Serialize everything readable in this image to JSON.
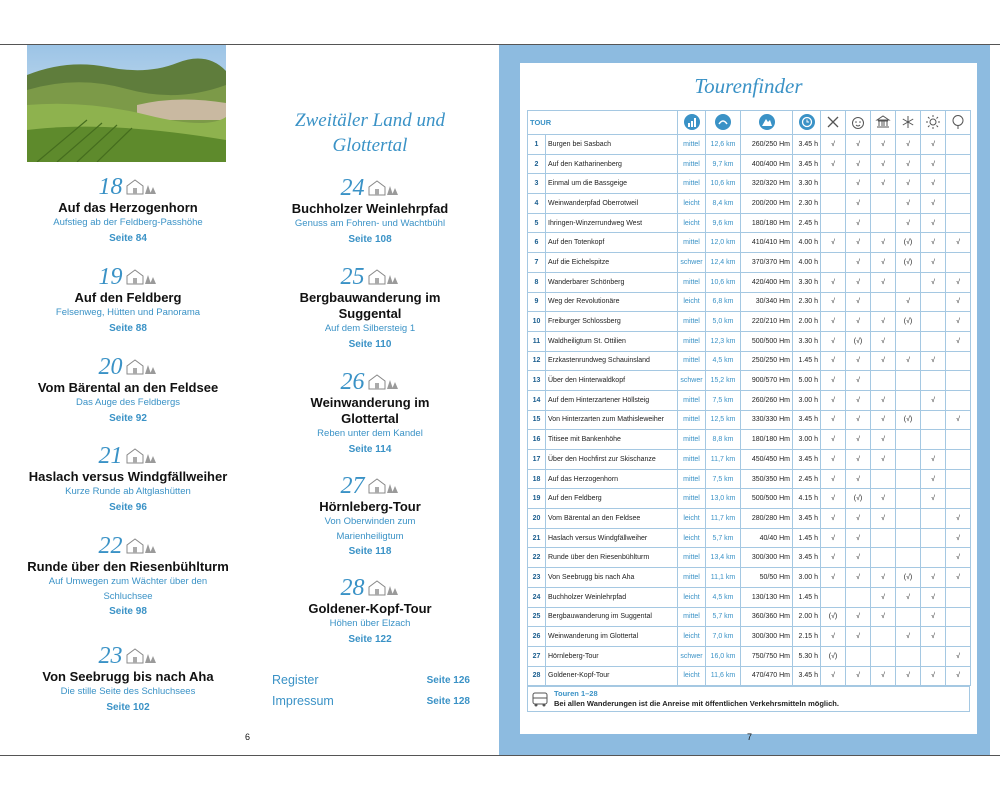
{
  "left_page": {
    "page_number": "6",
    "column1": [
      {
        "number": "18",
        "title": [
          "Auf das Herzogenhorn"
        ],
        "subtitle": [
          "Aufstieg ab der Feldberg-Passhöhe"
        ],
        "page": "Seite 84"
      },
      {
        "number": "19",
        "title": [
          "Auf den Feldberg"
        ],
        "subtitle": [
          "Felsenweg, Hütten und Panorama"
        ],
        "page": "Seite 88"
      },
      {
        "number": "20",
        "title": [
          "Vom Bärental an den Feldsee"
        ],
        "subtitle": [
          "Das Auge des Feldbergs"
        ],
        "page": "Seite 92"
      },
      {
        "number": "21",
        "title": [
          "Haslach versus Windgfällweiher"
        ],
        "subtitle": [
          "Kurze Runde ab Altglashütten"
        ],
        "page": "Seite 96"
      },
      {
        "number": "22",
        "title": [
          "Runde über den Riesenbühlturm"
        ],
        "subtitle": [
          "Auf Umwegen zum Wächter über den",
          "Schluchsee"
        ],
        "page": "Seite 98"
      },
      {
        "number": "23",
        "title": [
          "Von Seebrugg bis nach Aha"
        ],
        "subtitle": [
          "Die stille Seite des Schluchsees"
        ],
        "page": "Seite 102"
      }
    ],
    "column2_heading": [
      "Zweitäler Land und",
      "Glottertal"
    ],
    "column2": [
      {
        "number": "24",
        "title": [
          "Buchholzer Weinlehrpfad"
        ],
        "subtitle": [
          "Genuss am Fohren- und Wachtbühl"
        ],
        "page": "Seite 108"
      },
      {
        "number": "25",
        "title": [
          "Bergbauwanderung im",
          "Suggental"
        ],
        "subtitle": [
          "Auf dem Silbersteig 1"
        ],
        "page": "Seite 110"
      },
      {
        "number": "26",
        "title": [
          "Weinwanderung im",
          "Glottertal"
        ],
        "subtitle": [
          "Reben unter dem Kandel"
        ],
        "page": "Seite 114"
      },
      {
        "number": "27",
        "title": [
          "Hörnleberg-Tour"
        ],
        "subtitle": [
          "Von Oberwinden zum",
          "Marienheiligtum"
        ],
        "page": "Seite 118"
      },
      {
        "number": "28",
        "title": [
          "Goldener-Kopf-Tour"
        ],
        "subtitle": [
          "Höhen über Elzach"
        ],
        "page": "Seite 122"
      }
    ],
    "index": [
      {
        "label": "Register",
        "page": "Seite 126"
      },
      {
        "label": "Impressum",
        "page": "Seite 128"
      }
    ]
  },
  "right_page": {
    "page_number": "7",
    "title": "Tourenfinder",
    "table": {
      "header": "TOUR",
      "rows": [
        [
          1,
          "Burgen bei Sasbach",
          "mittel",
          "12,6 km",
          "260/250 Hm",
          "3.45 h",
          "√",
          "√",
          "√",
          "√",
          "√",
          null
        ],
        [
          2,
          "Auf den Katharinenberg",
          "mittel",
          "9,7 km",
          "400/400 Hm",
          "3.45 h",
          "√",
          "√",
          "√",
          "√",
          "√",
          null
        ],
        [
          3,
          "Einmal um die Bassgeige",
          "mittel",
          "10,6 km",
          "320/320 Hm",
          "3.30 h",
          null,
          "√",
          "√",
          "√",
          "√",
          null
        ],
        [
          4,
          "Weinwanderpfad Oberrotweil",
          "leicht",
          "8,4 km",
          "200/200 Hm",
          "2.30 h",
          null,
          "√",
          null,
          "√",
          "√",
          null
        ],
        [
          5,
          "Ihringen-Winzerrundweg West",
          "leicht",
          "9,6 km",
          "180/180 Hm",
          "2.45 h",
          null,
          "√",
          null,
          "√",
          "√",
          null
        ],
        [
          6,
          "Auf den Totenkopf",
          "mittel",
          "12,0 km",
          "410/410 Hm",
          "4.00 h",
          "√",
          "√",
          "√",
          "(√)",
          "√",
          "√"
        ],
        [
          7,
          "Auf die Eichelspitze",
          "schwer",
          "12,4 km",
          "370/370 Hm",
          "4.00 h",
          null,
          "√",
          "√",
          "(√)",
          "√",
          null
        ],
        [
          8,
          "Wanderbarer Schönberg",
          "mittel",
          "10,6 km",
          "420/400 Hm",
          "3.30 h",
          "√",
          "√",
          "√",
          null,
          "√",
          "√"
        ],
        [
          9,
          "Weg der Revolutionäre",
          "leicht",
          "6,8 km",
          "30/340 Hm",
          "2.30 h",
          "√",
          "√",
          null,
          "√",
          null,
          "√"
        ],
        [
          10,
          "Freiburger Schlossberg",
          "mittel",
          "5,0 km",
          "220/210 Hm",
          "2.00 h",
          "√",
          "√",
          "√",
          "(√)",
          null,
          "√"
        ],
        [
          11,
          "Waldheiligtum St. Ottilien",
          "mittel",
          "12,3 km",
          "500/500 Hm",
          "3.30 h",
          "√",
          "(√)",
          "√",
          null,
          null,
          "√"
        ],
        [
          12,
          "Erzkastenrundweg Schauinsland",
          "mittel",
          "4,5 km",
          "250/250 Hm",
          "1.45 h",
          "√",
          "√",
          "√",
          "√",
          "√",
          null
        ],
        [
          13,
          "Über den Hinterwaldkopf",
          "schwer",
          "15,2 km",
          "900/570 Hm",
          "5.00 h",
          "√",
          "√",
          null,
          null,
          null,
          null
        ],
        [
          14,
          "Auf dem Hinterzartener Höllsteig",
          "mittel",
          "7,5 km",
          "260/260 Hm",
          "3.00 h",
          "√",
          "√",
          "√",
          null,
          "√",
          null
        ],
        [
          15,
          "Von Hinterzarten zum Mathisleweiher",
          "mittel",
          "12,5 km",
          "330/330 Hm",
          "3.45 h",
          "√",
          "√",
          "√",
          "(√)",
          null,
          "√"
        ],
        [
          16,
          "Titisee mit Bankenhöhe",
          "mittel",
          "8,8 km",
          "180/180 Hm",
          "3.00 h",
          "√",
          "√",
          "√",
          null,
          null,
          null
        ],
        [
          17,
          "Über den Hochfirst zur Skischanze",
          "mittel",
          "11,7 km",
          "450/450 Hm",
          "3.45 h",
          "√",
          "√",
          "√",
          null,
          "√",
          null
        ],
        [
          18,
          "Auf das Herzogenhorn",
          "mittel",
          "7,5 km",
          "350/350 Hm",
          "2.45 h",
          "√",
          "√",
          null,
          null,
          "√",
          null
        ],
        [
          19,
          "Auf den Feldberg",
          "mittel",
          "13,0 km",
          "500/500 Hm",
          "4.15 h",
          "√",
          "(√)",
          "√",
          null,
          "√",
          null
        ],
        [
          20,
          "Vom Bärental an den Feldsee",
          "leicht",
          "11,7 km",
          "280/280 Hm",
          "3.45 h",
          "√",
          "√",
          "√",
          null,
          null,
          "√"
        ],
        [
          21,
          "Haslach versus Windgfällweiher",
          "leicht",
          "5,7 km",
          "40/40 Hm",
          "1.45 h",
          "√",
          "√",
          null,
          null,
          null,
          "√"
        ],
        [
          22,
          "Runde über den Riesenbühlturm",
          "mittel",
          "13,4 km",
          "300/300 Hm",
          "3.45 h",
          "√",
          "√",
          null,
          null,
          null,
          "√"
        ],
        [
          23,
          "Von Seebrugg bis nach Aha",
          "mittel",
          "11,1 km",
          "50/50 Hm",
          "3.00 h",
          "√",
          "√",
          "√",
          "(√)",
          "√",
          "√"
        ],
        [
          24,
          "Buchholzer Weinlehrpfad",
          "leicht",
          "4,5 km",
          "130/130 Hm",
          "1.45 h",
          null,
          null,
          "√",
          "√",
          "√",
          null
        ],
        [
          25,
          "Bergbauwanderung im Suggental",
          "mittel",
          "5,7 km",
          "360/360 Hm",
          "2.00 h",
          "(√)",
          "√",
          "√",
          null,
          "√",
          null
        ],
        [
          26,
          "Weinwanderung im Glottertal",
          "leicht",
          "7,0 km",
          "300/300 Hm",
          "2.15 h",
          "√",
          "√",
          null,
          "√",
          "√",
          null
        ],
        [
          27,
          "Hörnleberg-Tour",
          "schwer",
          "16,0 km",
          "750/750 Hm",
          "5.30 h",
          "(√)",
          null,
          null,
          null,
          null,
          "√"
        ],
        [
          28,
          "Goldener-Kopf-Tour",
          "leicht",
          "11,6 km",
          "470/470 Hm",
          "3.45 h",
          "√",
          "√",
          "√",
          "√",
          "√",
          "√"
        ]
      ]
    },
    "footer": {
      "title": "Touren 1–28",
      "note": "Bei allen Wanderungen ist die Anreise mit öffentlichen Verkehrsmitteln möglich."
    }
  }
}
